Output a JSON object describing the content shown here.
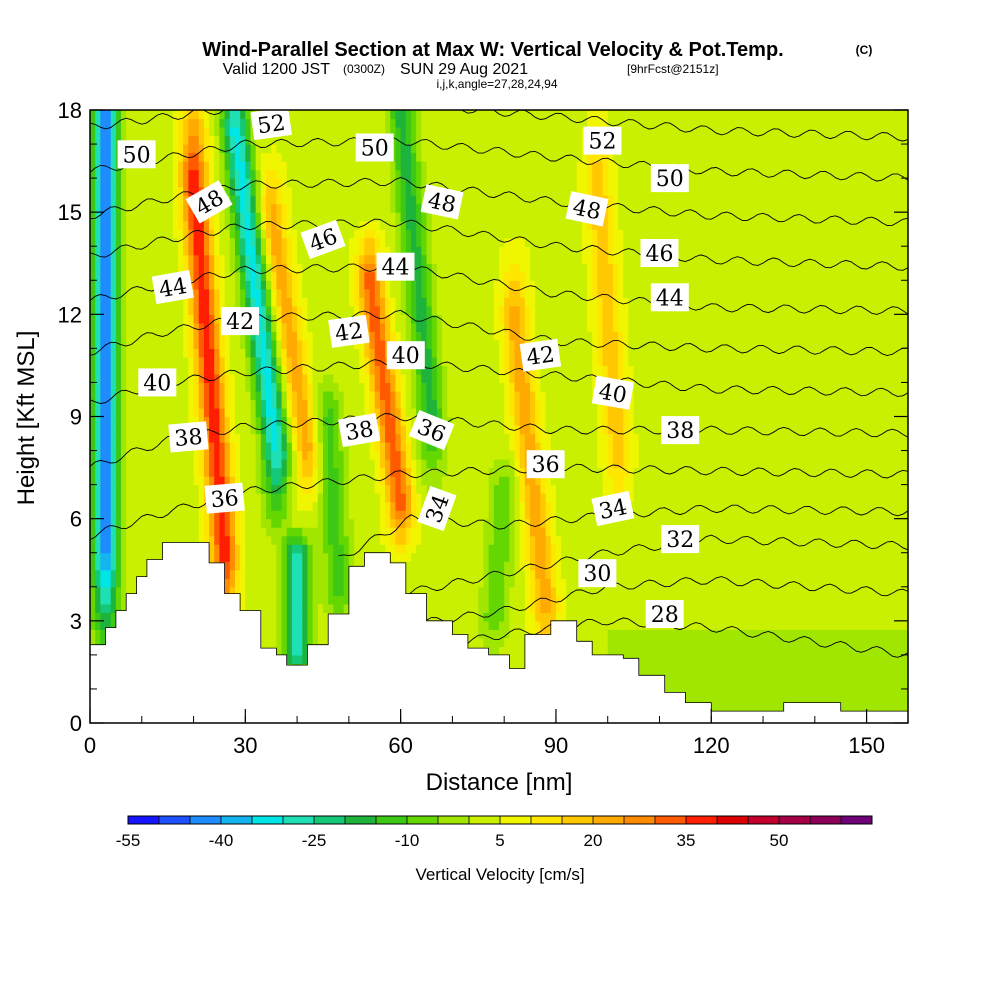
{
  "header": {
    "title_main": "Wind-Parallel Section at Max W: Vertical Velocity & Pot.Temp.",
    "title_mark": "(C)",
    "valid_prefix": "Valid 1200 JST",
    "valid_utc": "(0300Z)",
    "valid_date": "SUN 29 Aug 2021",
    "valid_fcst": "[9hrFcst@2151z]",
    "indices": "i,j,k,angle=27,28,24,94"
  },
  "chart_data": {
    "type": "heatmap",
    "title": "Wind-Parallel Section at Max W: Vertical Velocity & Pot.Temp.",
    "xlabel": "Distance [nm]",
    "ylabel": "Height [Kft MSL]",
    "xlim": [
      0,
      158
    ],
    "ylim": [
      0,
      18
    ],
    "x_ticks": [
      "0",
      "30",
      "60",
      "90",
      "120",
      "150"
    ],
    "x_tick_values": [
      0,
      30,
      60,
      90,
      120,
      150
    ],
    "y_ticks": [
      "0",
      "3",
      "6",
      "9",
      "12",
      "15",
      "18"
    ],
    "y_tick_values": [
      0,
      3,
      6,
      9,
      12,
      15,
      18
    ],
    "colorbar": {
      "label": "Vertical Velocity [cm/s]",
      "levels": [
        -55,
        -50,
        -45,
        -40,
        -35,
        -30,
        -25,
        -20,
        -15,
        -10,
        -5,
        0,
        5,
        10,
        15,
        20,
        25,
        30,
        35,
        40,
        45,
        50,
        55,
        60
      ],
      "tick_labels": [
        "-55",
        "-40",
        "-25",
        "-10",
        "5",
        "20",
        "35",
        "50"
      ],
      "tick_values": [
        -55,
        -40,
        -25,
        -10,
        5,
        20,
        35,
        50
      ],
      "colors": [
        "#1414ff",
        "#1e50ff",
        "#1e8cff",
        "#14b4f0",
        "#00e6e6",
        "#1ee0b4",
        "#14c878",
        "#1eb43c",
        "#3cc814",
        "#64d700",
        "#a0e600",
        "#c8f000",
        "#f0f500",
        "#ffe600",
        "#ffc800",
        "#ffaa00",
        "#ff8c00",
        "#ff5a00",
        "#ff1e00",
        "#dc0000",
        "#c3002d",
        "#a50046",
        "#8c005a",
        "#6e0078"
      ]
    },
    "terrain": [
      [
        0,
        2.3
      ],
      [
        3,
        2.8
      ],
      [
        5,
        3.3
      ],
      [
        7,
        3.8
      ],
      [
        9,
        4.3
      ],
      [
        11,
        4.8
      ],
      [
        14,
        5.3
      ],
      [
        23,
        4.7
      ],
      [
        26,
        3.8
      ],
      [
        29,
        3.3
      ],
      [
        33,
        2.2
      ],
      [
        36,
        2.0
      ],
      [
        38,
        1.7
      ],
      [
        42,
        2.3
      ],
      [
        46,
        3.2
      ],
      [
        50,
        4.6
      ],
      [
        53,
        5.0
      ],
      [
        58,
        4.7
      ],
      [
        61,
        3.8
      ],
      [
        65,
        3.0
      ],
      [
        70,
        2.6
      ],
      [
        73,
        2.2
      ],
      [
        77,
        2.0
      ],
      [
        81,
        1.6
      ],
      [
        84,
        2.6
      ],
      [
        89,
        3.0
      ],
      [
        94,
        2.4
      ],
      [
        97,
        2.0
      ],
      [
        103,
        1.9
      ],
      [
        106,
        1.4
      ],
      [
        111,
        0.9
      ],
      [
        115,
        0.6
      ],
      [
        120,
        0.35
      ],
      [
        132,
        0.35
      ],
      [
        134,
        0.6
      ],
      [
        143,
        0.6
      ],
      [
        145,
        0.35
      ],
      [
        158,
        0.35
      ]
    ],
    "updraft_cores": [
      {
        "x_bottom": 26,
        "x_top": 20,
        "y_bottom": 5.0,
        "y_top": 16.0,
        "peak_w": 35
      },
      {
        "x_bottom": 60,
        "x_top": 54,
        "y_bottom": 6.5,
        "y_top": 13.0,
        "peak_w": 30
      },
      {
        "x_bottom": 88,
        "x_top": 82,
        "y_bottom": 3.5,
        "y_top": 12.0,
        "peak_w": 20
      },
      {
        "x_bottom": 42,
        "x_top": 35,
        "y_bottom": 8.0,
        "y_top": 15.0,
        "peak_w": 20
      },
      {
        "x_bottom": 102,
        "x_top": 98,
        "y_bottom": 8.0,
        "y_top": 16.0,
        "peak_w": 15
      }
    ],
    "downdraft_cores": [
      {
        "x_bottom": 3,
        "x_top": 3,
        "y_bottom": 5.0,
        "y_top": 18.0,
        "peak_w": -45
      },
      {
        "x_bottom": 36,
        "x_top": 28,
        "y_bottom": 8.0,
        "y_top": 17.5,
        "peak_w": -35
      },
      {
        "x_bottom": 40,
        "x_top": 40,
        "y_bottom": 2.0,
        "y_top": 5.0,
        "peak_w": -30
      },
      {
        "x_bottom": 66,
        "x_top": 60,
        "y_bottom": 9.0,
        "y_top": 18.0,
        "peak_w": -20
      },
      {
        "x_bottom": 48,
        "x_top": 46,
        "y_bottom": 4.0,
        "y_top": 9.0,
        "peak_w": -15
      },
      {
        "x_bottom": 78,
        "x_top": 80,
        "y_bottom": 3.0,
        "y_top": 7.0,
        "peak_w": -12
      }
    ],
    "theta_contours": [
      {
        "level": 28,
        "heights": [
          [
            62,
            2.1
          ],
          [
            80,
            2.6
          ],
          [
            100,
            3.0
          ],
          [
            120,
            2.8
          ],
          [
            158,
            2.0
          ]
        ]
      },
      {
        "level": 30,
        "heights": [
          [
            58,
            2.8
          ],
          [
            80,
            3.3
          ],
          [
            100,
            4.0
          ],
          [
            120,
            4.2
          ],
          [
            158,
            3.8
          ]
        ]
      },
      {
        "level": 32,
        "heights": [
          [
            54,
            3.6
          ],
          [
            80,
            4.4
          ],
          [
            100,
            5.0
          ],
          [
            120,
            5.4
          ],
          [
            158,
            5.2
          ]
        ]
      },
      {
        "level": 34,
        "heights": [
          [
            48,
            4.8
          ],
          [
            62,
            6.0
          ],
          [
            80,
            5.8
          ],
          [
            100,
            6.1
          ],
          [
            120,
            6.3
          ],
          [
            158,
            6.2
          ]
        ]
      },
      {
        "level": 36,
        "heights": [
          [
            0,
            5.5
          ],
          [
            15,
            6.2
          ],
          [
            30,
            6.8
          ],
          [
            60,
            7.3
          ],
          [
            90,
            7.5
          ],
          [
            120,
            7.4
          ],
          [
            158,
            7.3
          ]
        ]
      },
      {
        "level": 38,
        "heights": [
          [
            0,
            7.5
          ],
          [
            15,
            8.3
          ],
          [
            30,
            8.7
          ],
          [
            60,
            9.0
          ],
          [
            90,
            8.6
          ],
          [
            120,
            8.6
          ],
          [
            158,
            8.5
          ]
        ]
      },
      {
        "level": 40,
        "heights": [
          [
            0,
            9.4
          ],
          [
            15,
            10.0
          ],
          [
            30,
            10.3
          ],
          [
            60,
            10.6
          ],
          [
            90,
            10.2
          ],
          [
            120,
            9.8
          ],
          [
            158,
            9.7
          ]
        ]
      },
      {
        "level": 42,
        "heights": [
          [
            0,
            10.9
          ],
          [
            15,
            11.5
          ],
          [
            30,
            11.9
          ],
          [
            60,
            12.0
          ],
          [
            90,
            11.2
          ],
          [
            120,
            11.0
          ],
          [
            158,
            10.9
          ]
        ]
      },
      {
        "level": 44,
        "heights": [
          [
            0,
            12.4
          ],
          [
            15,
            12.9
          ],
          [
            30,
            13.3
          ],
          [
            60,
            13.4
          ],
          [
            90,
            12.6
          ],
          [
            120,
            12.2
          ],
          [
            158,
            12.1
          ]
        ]
      },
      {
        "level": 46,
        "heights": [
          [
            0,
            13.7
          ],
          [
            15,
            14.2
          ],
          [
            30,
            14.6
          ],
          [
            60,
            14.7
          ],
          [
            90,
            14.0
          ],
          [
            120,
            13.6
          ],
          [
            158,
            13.4
          ]
        ]
      },
      {
        "level": 48,
        "heights": [
          [
            0,
            14.9
          ],
          [
            15,
            15.4
          ],
          [
            30,
            15.8
          ],
          [
            60,
            15.9
          ],
          [
            90,
            15.3
          ],
          [
            120,
            14.9
          ],
          [
            158,
            14.7
          ]
        ]
      },
      {
        "level": 50,
        "heights": [
          [
            0,
            16.2
          ],
          [
            15,
            16.6
          ],
          [
            30,
            17.0
          ],
          [
            60,
            17.1
          ],
          [
            90,
            16.6
          ],
          [
            120,
            16.2
          ],
          [
            158,
            16.0
          ]
        ]
      },
      {
        "level": 52,
        "heights": [
          [
            0,
            17.5
          ],
          [
            15,
            17.8
          ],
          [
            30,
            18.1
          ],
          [
            60,
            18.2
          ],
          [
            90,
            17.8
          ],
          [
            120,
            17.4
          ],
          [
            158,
            17.2
          ]
        ]
      }
    ],
    "contour_labels": [
      {
        "text": "50",
        "x": 9,
        "y": 16.7,
        "angle": 0
      },
      {
        "text": "52",
        "x": 35,
        "y": 17.6,
        "angle": -8
      },
      {
        "text": "50",
        "x": 55,
        "y": 16.9,
        "angle": 0
      },
      {
        "text": "52",
        "x": 99,
        "y": 17.1,
        "angle": 0
      },
      {
        "text": "50",
        "x": 112,
        "y": 16.0,
        "angle": 0
      },
      {
        "text": "48",
        "x": 23,
        "y": 15.3,
        "angle": -30
      },
      {
        "text": "48",
        "x": 68,
        "y": 15.3,
        "angle": 12
      },
      {
        "text": "48",
        "x": 96,
        "y": 15.1,
        "angle": 12
      },
      {
        "text": "46",
        "x": 45,
        "y": 14.2,
        "angle": -20
      },
      {
        "text": "46",
        "x": 110,
        "y": 13.8,
        "angle": 0
      },
      {
        "text": "44",
        "x": 16,
        "y": 12.8,
        "angle": -10
      },
      {
        "text": "44",
        "x": 59,
        "y": 13.4,
        "angle": 0
      },
      {
        "text": "44",
        "x": 112,
        "y": 12.5,
        "angle": 0
      },
      {
        "text": "42",
        "x": 29,
        "y": 11.8,
        "angle": 0
      },
      {
        "text": "42",
        "x": 50,
        "y": 11.5,
        "angle": -8
      },
      {
        "text": "42",
        "x": 87,
        "y": 10.8,
        "angle": -8
      },
      {
        "text": "40",
        "x": 13,
        "y": 10.0,
        "angle": 0
      },
      {
        "text": "40",
        "x": 61,
        "y": 10.8,
        "angle": 0
      },
      {
        "text": "40",
        "x": 101,
        "y": 9.7,
        "angle": 10
      },
      {
        "text": "38",
        "x": 19,
        "y": 8.4,
        "angle": -5
      },
      {
        "text": "38",
        "x": 52,
        "y": 8.6,
        "angle": -10
      },
      {
        "text": "38",
        "x": 114,
        "y": 8.6,
        "angle": 0
      },
      {
        "text": "36",
        "x": 26,
        "y": 6.6,
        "angle": -5
      },
      {
        "text": "36",
        "x": 66,
        "y": 8.6,
        "angle": 22
      },
      {
        "text": "36",
        "x": 88,
        "y": 7.6,
        "angle": 0
      },
      {
        "text": "34",
        "x": 67,
        "y": 6.3,
        "angle": -70
      },
      {
        "text": "34",
        "x": 101,
        "y": 6.3,
        "angle": -12
      },
      {
        "text": "32",
        "x": 114,
        "y": 5.4,
        "angle": 0
      },
      {
        "text": "30",
        "x": 98,
        "y": 4.4,
        "angle": 0
      },
      {
        "text": "28",
        "x": 111,
        "y": 3.2,
        "angle": 0
      }
    ]
  }
}
